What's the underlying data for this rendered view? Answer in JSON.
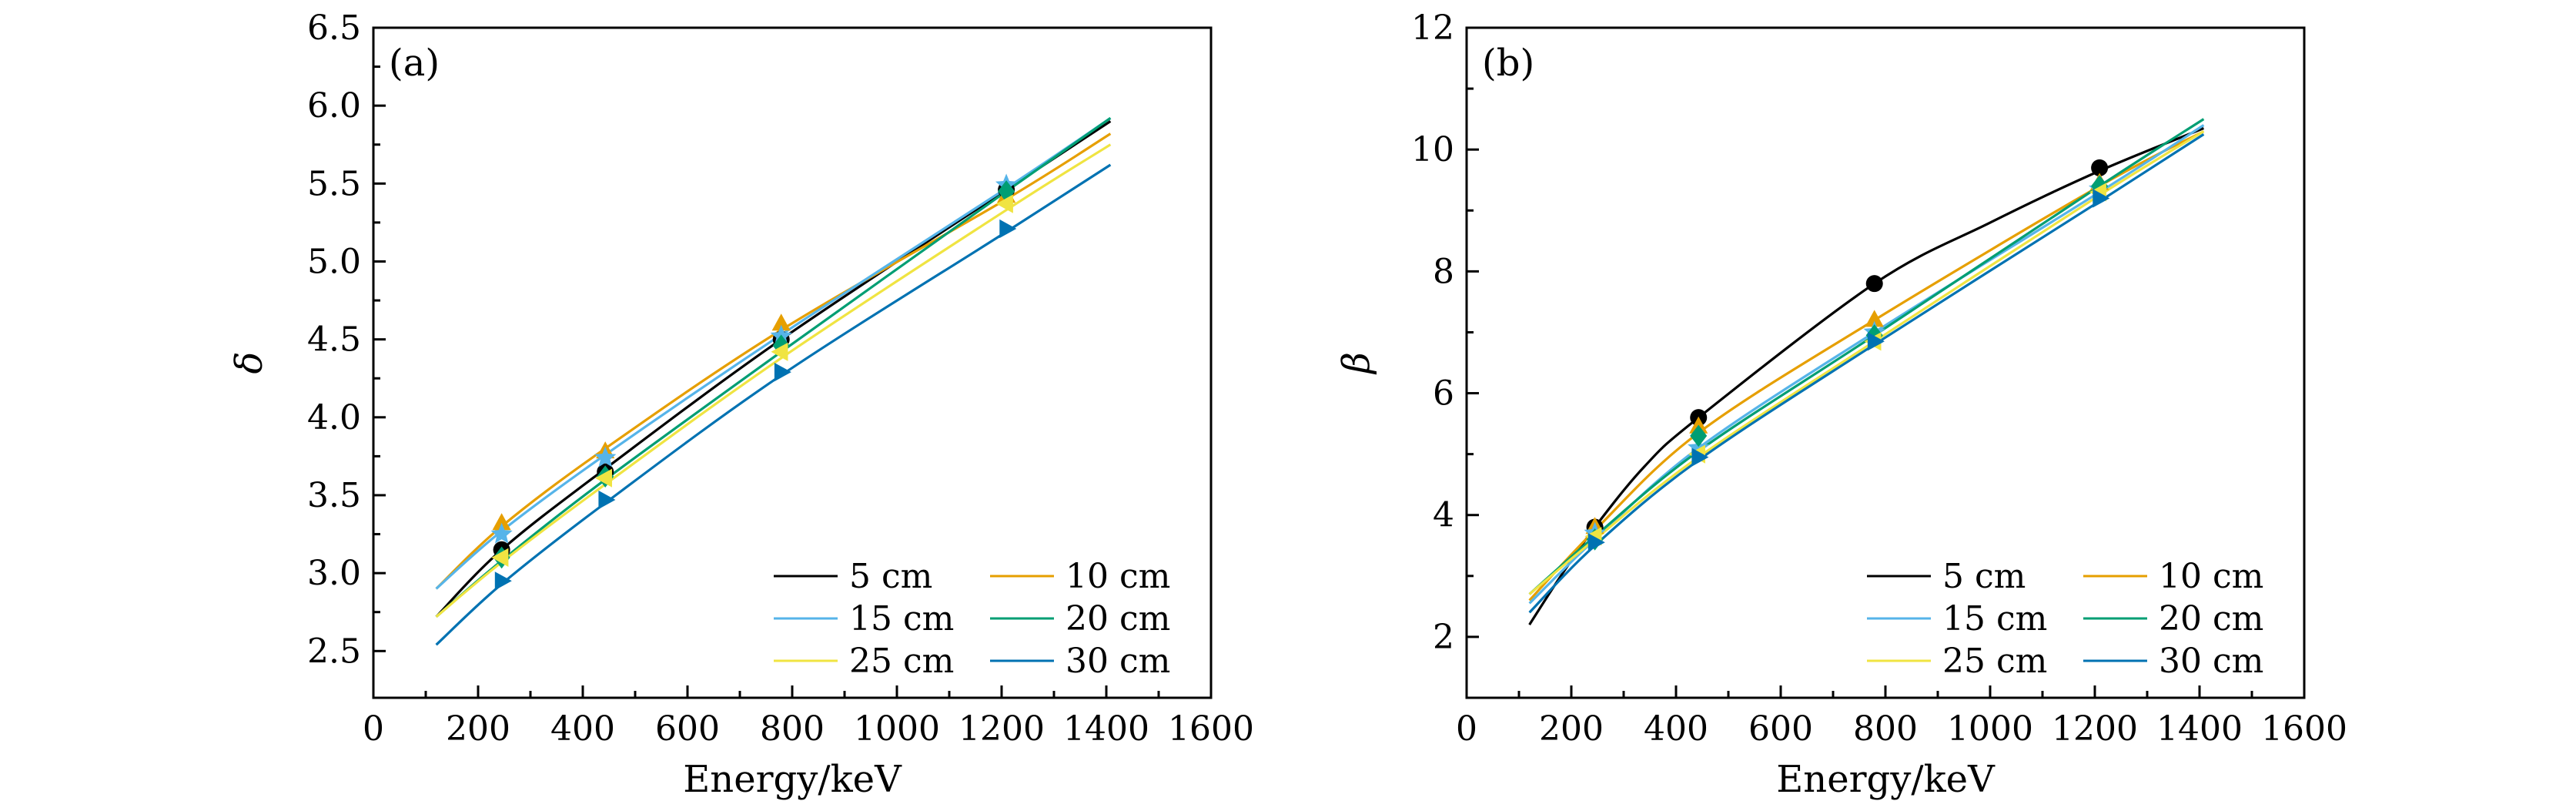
{
  "chart_data": [
    {
      "type": "line",
      "panel_label": "(a)",
      "xlabel": "Energy/keV",
      "ylabel": "δ",
      "xlim": [
        0,
        1600
      ],
      "ylim": [
        2.2,
        6.5
      ],
      "x_ticks": [
        0,
        200,
        400,
        600,
        800,
        1000,
        1200,
        1400,
        1600
      ],
      "x_tick_labels": [
        "0",
        "200",
        "400",
        "600",
        "800",
        "1000",
        "1200",
        "1400",
        "1600"
      ],
      "y_ticks": [
        2.5,
        3.0,
        3.5,
        4.0,
        4.5,
        5.0,
        5.5,
        6.0,
        6.5
      ],
      "y_tick_labels": [
        "2.5",
        "3.0",
        "3.5",
        "4.0",
        "4.5",
        "5.0",
        "5.5",
        "6.0",
        "6.5"
      ],
      "legend_position": "bottom-right",
      "series": [
        {
          "name": "5 cm",
          "color": "#000000",
          "marker": "circle",
          "points_x": [
            245,
            443,
            779,
            1209
          ],
          "points_y": [
            3.15,
            3.65,
            4.5,
            5.46
          ],
          "curve_x": [
            120,
            245,
            443,
            779,
            1209,
            1408
          ],
          "curve_y": [
            2.72,
            3.15,
            3.67,
            4.5,
            5.46,
            5.9
          ]
        },
        {
          "name": "10 cm",
          "color": "#E69F00",
          "marker": "triangle-up",
          "points_x": [
            245,
            443,
            779,
            1209
          ],
          "points_y": [
            3.32,
            3.78,
            4.6,
            5.42
          ],
          "curve_x": [
            120,
            245,
            443,
            779,
            1209,
            1408
          ],
          "curve_y": [
            2.9,
            3.3,
            3.8,
            4.56,
            5.4,
            5.82
          ]
        },
        {
          "name": "15 cm",
          "color": "#56B4E9",
          "marker": "star",
          "points_x": [
            245,
            443,
            779,
            1209
          ],
          "points_y": [
            3.25,
            3.74,
            4.52,
            5.49
          ],
          "curve_x": [
            120,
            245,
            443,
            779,
            1209,
            1408
          ],
          "curve_y": [
            2.9,
            3.27,
            3.76,
            4.53,
            5.47,
            5.92
          ]
        },
        {
          "name": "20 cm",
          "color": "#009E73",
          "marker": "diamond",
          "points_x": [
            245,
            443,
            779,
            1209
          ],
          "points_y": [
            3.1,
            3.62,
            4.46,
            5.45
          ],
          "curve_x": [
            120,
            245,
            443,
            779,
            1209,
            1408
          ],
          "curve_y": [
            2.72,
            3.08,
            3.6,
            4.42,
            5.45,
            5.92
          ]
        },
        {
          "name": "25 cm",
          "color": "#F0E442",
          "marker": "triangle-left",
          "points_x": [
            245,
            443,
            779,
            1209
          ],
          "points_y": [
            3.1,
            3.61,
            4.42,
            5.37
          ],
          "curve_x": [
            120,
            245,
            443,
            779,
            1209,
            1408
          ],
          "curve_y": [
            2.72,
            3.07,
            3.57,
            4.38,
            5.33,
            5.75
          ]
        },
        {
          "name": "30 cm",
          "color": "#0072B2",
          "marker": "triangle-right",
          "points_x": [
            245,
            443,
            779,
            1209
          ],
          "points_y": [
            2.95,
            3.47,
            4.29,
            5.21
          ],
          "curve_x": [
            120,
            245,
            443,
            779,
            1209,
            1408
          ],
          "curve_y": [
            2.54,
            2.93,
            3.45,
            4.27,
            5.19,
            5.62
          ]
        }
      ]
    },
    {
      "type": "line",
      "panel_label": "(b)",
      "xlabel": "Energy/keV",
      "ylabel": "β",
      "xlim": [
        0,
        1600
      ],
      "ylim": [
        1,
        12
      ],
      "x_ticks": [
        0,
        200,
        400,
        600,
        800,
        1000,
        1200,
        1400,
        1600
      ],
      "x_tick_labels": [
        "0",
        "200",
        "400",
        "600",
        "800",
        "1000",
        "1200",
        "1400",
        "1600"
      ],
      "y_ticks": [
        2,
        4,
        6,
        8,
        10,
        12
      ],
      "y_tick_labels": [
        "2",
        "4",
        "6",
        "8",
        "10",
        "12"
      ],
      "legend_position": "bottom-right",
      "series": [
        {
          "name": "5 cm",
          "color": "#000000",
          "marker": "circle",
          "points_x": [
            245,
            443,
            779,
            1209
          ],
          "points_y": [
            3.8,
            5.6,
            7.8,
            9.7
          ],
          "curve_x": [
            120,
            180,
            245,
            340,
            443,
            779,
            1000,
            1209,
            1408
          ],
          "curve_y": [
            2.2,
            3.0,
            3.8,
            4.8,
            5.6,
            7.8,
            8.8,
            9.65,
            10.35
          ]
        },
        {
          "name": "10 cm",
          "color": "#E69F00",
          "marker": "triangle-up",
          "points_x": [
            245,
            443,
            779,
            1209
          ],
          "points_y": [
            3.8,
            5.45,
            7.2,
            9.45
          ],
          "curve_x": [
            120,
            245,
            443,
            779,
            1209,
            1408
          ],
          "curve_y": [
            2.6,
            3.75,
            5.35,
            7.2,
            9.4,
            10.3
          ]
        },
        {
          "name": "15 cm",
          "color": "#56B4E9",
          "marker": "star",
          "points_x": [
            245,
            443,
            779,
            1209
          ],
          "points_y": [
            3.7,
            5.1,
            7.0,
            9.35
          ],
          "curve_x": [
            120,
            245,
            443,
            779,
            1209,
            1408
          ],
          "curve_y": [
            2.55,
            3.6,
            5.1,
            7.0,
            9.3,
            10.4
          ]
        },
        {
          "name": "20 cm",
          "color": "#009E73",
          "marker": "diamond",
          "points_x": [
            245,
            443,
            779,
            1209
          ],
          "points_y": [
            3.6,
            5.3,
            6.95,
            9.4
          ],
          "curve_x": [
            120,
            245,
            443,
            779,
            1209,
            1408
          ],
          "curve_y": [
            2.7,
            3.65,
            5.05,
            6.95,
            9.4,
            10.5
          ]
        },
        {
          "name": "25 cm",
          "color": "#F0E442",
          "marker": "triangle-left",
          "points_x": [
            245,
            443,
            779,
            1209
          ],
          "points_y": [
            3.65,
            5.0,
            6.85,
            9.3
          ],
          "curve_x": [
            120,
            245,
            443,
            779,
            1209,
            1408
          ],
          "curve_y": [
            2.7,
            3.6,
            4.95,
            6.85,
            9.25,
            10.3
          ]
        },
        {
          "name": "30 cm",
          "color": "#0072B2",
          "marker": "triangle-right",
          "points_x": [
            245,
            443,
            779,
            1209
          ],
          "points_y": [
            3.55,
            4.95,
            6.85,
            9.2
          ],
          "curve_x": [
            120,
            245,
            443,
            779,
            1209,
            1408
          ],
          "curve_y": [
            2.4,
            3.5,
            4.9,
            6.8,
            9.15,
            10.25
          ]
        }
      ]
    }
  ]
}
